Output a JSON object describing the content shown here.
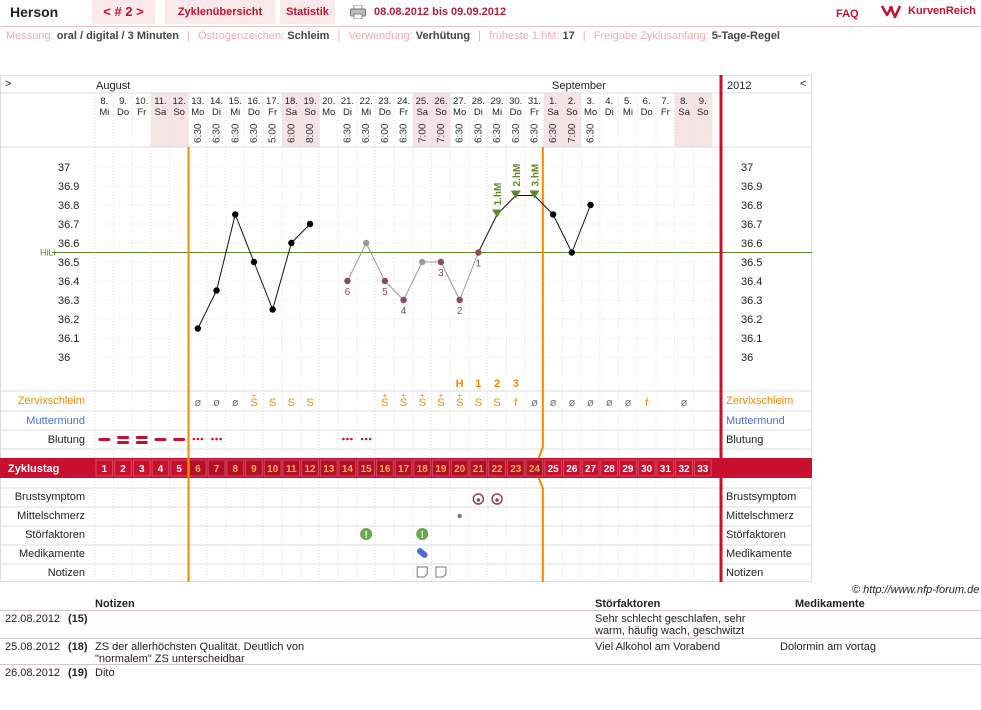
{
  "header": {
    "title": "Herson",
    "cycle_nav": "< # 2 >",
    "tabs": [
      "Zyklenübersicht",
      "Statistik"
    ],
    "date_range": "08.08.2012 bis 09.09.2012",
    "faq": "FAQ",
    "brand": "KurvenReich"
  },
  "info": [
    {
      "label": "Messung:",
      "value": "oral / digital / 3 Minuten"
    },
    {
      "label": "Östrogenzeichen:",
      "value": "Schleim"
    },
    {
      "label": "Verwendung:",
      "value": "Verhütung"
    },
    {
      "label": "früheste 1.hM:",
      "value": "17"
    },
    {
      "label": "Freigabe Zyklusanfang:",
      "value": "5-Tage-Regel"
    }
  ],
  "chart_data": {
    "type": "line",
    "nav_left": ">",
    "nav_right": "<",
    "months": [
      "August",
      "September"
    ],
    "year": "2012",
    "days": [
      {
        "d": "8.",
        "w": "Mi",
        "t": "",
        "c": 1,
        "s": false
      },
      {
        "d": "9.",
        "w": "Do",
        "t": "",
        "c": 2,
        "s": false
      },
      {
        "d": "10.",
        "w": "Fr",
        "t": "",
        "c": 3,
        "s": false
      },
      {
        "d": "11.",
        "w": "Sa",
        "t": "",
        "c": 4,
        "s": true
      },
      {
        "d": "12.",
        "w": "So",
        "t": "",
        "c": 5,
        "s": true
      },
      {
        "d": "13.",
        "w": "Mo",
        "t": "6:30",
        "c": 6,
        "s": false
      },
      {
        "d": "14.",
        "w": "Di",
        "t": "6:30",
        "c": 7,
        "s": false
      },
      {
        "d": "15.",
        "w": "Mi",
        "t": "6:30",
        "c": 8,
        "s": false
      },
      {
        "d": "16.",
        "w": "Do",
        "t": "6:30",
        "c": 9,
        "s": false
      },
      {
        "d": "17.",
        "w": "Fr",
        "t": "5:00",
        "c": 10,
        "s": false
      },
      {
        "d": "18.",
        "w": "Sa",
        "t": "6:00",
        "c": 11,
        "s": true
      },
      {
        "d": "19.",
        "w": "So",
        "t": "8:00",
        "c": 12,
        "s": true
      },
      {
        "d": "20.",
        "w": "Mo",
        "t": "",
        "c": 13,
        "s": false
      },
      {
        "d": "21.",
        "w": "Di",
        "t": "6:30",
        "c": 14,
        "s": false
      },
      {
        "d": "22.",
        "w": "Mi",
        "t": "6:30",
        "c": 15,
        "s": false
      },
      {
        "d": "23.",
        "w": "Do",
        "t": "6:00",
        "c": 16,
        "s": false
      },
      {
        "d": "24.",
        "w": "Fr",
        "t": "6:30",
        "c": 17,
        "s": false
      },
      {
        "d": "25.",
        "w": "Sa",
        "t": "7:00",
        "c": 18,
        "s": true
      },
      {
        "d": "26.",
        "w": "So",
        "t": "7:00",
        "c": 19,
        "s": true
      },
      {
        "d": "27.",
        "w": "Mo",
        "t": "6:30",
        "c": 20,
        "s": false
      },
      {
        "d": "28.",
        "w": "Di",
        "t": "6:30",
        "c": 21,
        "s": false
      },
      {
        "d": "29.",
        "w": "Mi",
        "t": "6:30",
        "c": 22,
        "s": false
      },
      {
        "d": "30.",
        "w": "Do",
        "t": "6:30",
        "c": 23,
        "s": false
      },
      {
        "d": "31.",
        "w": "Fr",
        "t": "6:30",
        "c": 24,
        "s": false
      },
      {
        "d": "1.",
        "w": "Sa",
        "t": "6:30",
        "c": 25,
        "s": true
      },
      {
        "d": "2.",
        "w": "So",
        "t": "7:00",
        "c": 26,
        "s": true
      },
      {
        "d": "3.",
        "w": "Mo",
        "t": "6:30",
        "c": 27,
        "s": false
      },
      {
        "d": "4.",
        "w": "Di",
        "t": "",
        "c": 28,
        "s": false
      },
      {
        "d": "5.",
        "w": "Mi",
        "t": "",
        "c": 29,
        "s": false
      },
      {
        "d": "6.",
        "w": "Do",
        "t": "",
        "c": 30,
        "s": false
      },
      {
        "d": "7.",
        "w": "Fr",
        "t": "",
        "c": 31,
        "s": false
      },
      {
        "d": "8.",
        "w": "Sa",
        "t": "",
        "c": 32,
        "s": true
      },
      {
        "d": "9.",
        "w": "So",
        "t": "",
        "c": 33,
        "s": true
      }
    ],
    "y_ticks": [
      "37",
      "36.9",
      "36.8",
      "36.7",
      "36.6",
      "36.5",
      "36.4",
      "36.3",
      "36.2",
      "36.1",
      "36"
    ],
    "ylim": [
      36.0,
      37.0
    ],
    "hili_label": "HiLi",
    "hili_value": 36.55,
    "temperatures": [
      {
        "cd": 6,
        "v": 36.15,
        "st": "ok",
        "lbl": ""
      },
      {
        "cd": 7,
        "v": 36.35,
        "st": "ok",
        "lbl": ""
      },
      {
        "cd": 8,
        "v": 36.75,
        "st": "ok",
        "lbl": ""
      },
      {
        "cd": 9,
        "v": 36.5,
        "st": "ok",
        "lbl": ""
      },
      {
        "cd": 10,
        "v": 36.25,
        "st": "ok",
        "lbl": ""
      },
      {
        "cd": 11,
        "v": 36.6,
        "st": "ok",
        "lbl": ""
      },
      {
        "cd": 12,
        "v": 36.7,
        "st": "ok",
        "lbl": ""
      },
      {
        "cd": 14,
        "v": 36.4,
        "st": "low",
        "lbl": "6"
      },
      {
        "cd": 15,
        "v": 36.6,
        "st": "excl",
        "lbl": ""
      },
      {
        "cd": 16,
        "v": 36.4,
        "st": "low",
        "lbl": "5"
      },
      {
        "cd": 17,
        "v": 36.3,
        "st": "low",
        "lbl": "4"
      },
      {
        "cd": 18,
        "v": 36.5,
        "st": "excl",
        "lbl": ""
      },
      {
        "cd": 19,
        "v": 36.5,
        "st": "low",
        "lbl": "3"
      },
      {
        "cd": 20,
        "v": 36.3,
        "st": "low",
        "lbl": "2"
      },
      {
        "cd": 21,
        "v": 36.55,
        "st": "low",
        "lbl": "1"
      },
      {
        "cd": 22,
        "v": 36.75,
        "st": "high",
        "lbl": "1.hM"
      },
      {
        "cd": 23,
        "v": 36.85,
        "st": "high",
        "lbl": "2.hM"
      },
      {
        "cd": 24,
        "v": 36.85,
        "st": "high",
        "lbl": "3.hM"
      },
      {
        "cd": 25,
        "v": 36.75,
        "st": "ok",
        "lbl": ""
      },
      {
        "cd": 26,
        "v": 36.55,
        "st": "ok",
        "lbl": ""
      },
      {
        "cd": 27,
        "v": 36.8,
        "st": "ok",
        "lbl": ""
      }
    ],
    "peak_marks": [
      {
        "cd": 20,
        "t": "H"
      },
      {
        "cd": 21,
        "t": "1"
      },
      {
        "cd": 22,
        "t": "2"
      },
      {
        "cd": 23,
        "t": "3"
      }
    ],
    "row_labels": {
      "mucus": "Zervixschleim",
      "cervix": "Muttermund",
      "bleeding": "Blutung",
      "cycle_day": "Zyklustag",
      "breast": "Brustsymptom",
      "midpain": "Mittelschmerz",
      "disturb": "Störfaktoren",
      "meds": "Medikamente",
      "notes": "Notizen"
    },
    "mucus": [
      {
        "cd": 6,
        "t": "ø"
      },
      {
        "cd": 7,
        "t": "ø"
      },
      {
        "cd": 8,
        "t": "ø"
      },
      {
        "cd": 9,
        "t": "S+"
      },
      {
        "cd": 10,
        "t": "S"
      },
      {
        "cd": 11,
        "t": "S"
      },
      {
        "cd": 12,
        "t": "S"
      },
      {
        "cd": 16,
        "t": "S+"
      },
      {
        "cd": 17,
        "t": "S+"
      },
      {
        "cd": 18,
        "t": "S+"
      },
      {
        "cd": 19,
        "t": "S+"
      },
      {
        "cd": 20,
        "t": "S+"
      },
      {
        "cd": 21,
        "t": "S"
      },
      {
        "cd": 22,
        "t": "S"
      },
      {
        "cd": 23,
        "t": "f"
      },
      {
        "cd": 24,
        "t": "ø"
      },
      {
        "cd": 25,
        "t": "ø"
      },
      {
        "cd": 26,
        "t": "ø"
      },
      {
        "cd": 27,
        "t": "ø"
      },
      {
        "cd": 28,
        "t": "ø"
      },
      {
        "cd": 29,
        "t": "ø"
      },
      {
        "cd": 30,
        "t": "f"
      },
      {
        "cd": 32,
        "t": "ø"
      }
    ],
    "bleeding": [
      {
        "cd": 1,
        "k": "heavy"
      },
      {
        "cd": 2,
        "k": "heavy2"
      },
      {
        "cd": 3,
        "k": "heavy2"
      },
      {
        "cd": 4,
        "k": "heavy"
      },
      {
        "cd": 5,
        "k": "heavy"
      },
      {
        "cd": 6,
        "k": "spot"
      },
      {
        "cd": 7,
        "k": "spot"
      },
      {
        "cd": 14,
        "k": "spot"
      },
      {
        "cd": 15,
        "k": "spot"
      }
    ],
    "breast": [
      21,
      22
    ],
    "midpain": [
      20
    ],
    "disturb": [
      15,
      18
    ],
    "meds": [
      18
    ],
    "notes": [
      18,
      19
    ]
  },
  "notes_table": {
    "copyright": "© http://www.nfp-forum.de",
    "headers": {
      "notes": "Notizen",
      "disturb": "Störfaktoren",
      "meds": "Medikamente"
    },
    "rows": [
      {
        "date": "22.08.2012",
        "cd": "(15)",
        "note": "",
        "disturb": "Sehr schlecht geschlafen, sehr warm, häufig wach, geschwitzt",
        "meds": ""
      },
      {
        "date": "25.08.2012",
        "cd": "(18)",
        "note": "ZS der allerhöchsten Qualität. Deutlich von \"normalem\" ZS unterscheidbar",
        "disturb": "Viel Alkohol am Vorabend",
        "meds": "Dolormin am vortag"
      },
      {
        "date": "26.08.2012",
        "cd": "(19)",
        "note": "Dito",
        "disturb": "",
        "meds": ""
      }
    ]
  },
  "colors": {
    "accent": "#c8102e",
    "orange": "#f28a00",
    "green": "#5a8a2a",
    "mauve": "#8a4a5a",
    "blue": "#4a6fcf"
  }
}
